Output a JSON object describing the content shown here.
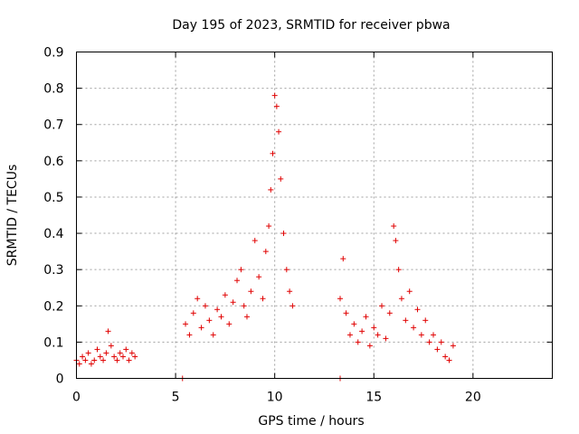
{
  "chart_data": {
    "type": "scatter",
    "title": "Day 195 of 2023, SRMTID for receiver pbwa",
    "xlabel": "GPS time / hours",
    "ylabel": "SRMTID / TECUs",
    "xlim": [
      0,
      24
    ],
    "ylim": [
      0,
      0.9
    ],
    "grid": true,
    "point_color": "#e00000",
    "xticks": [
      0,
      5,
      10,
      15,
      20
    ],
    "xtick_labels": [
      "0",
      "5",
      "10",
      "15",
      "20"
    ],
    "yticks": [
      0,
      0.1,
      0.2,
      0.3,
      0.4,
      0.5,
      0.6,
      0.7,
      0.8,
      0.9
    ],
    "ytick_labels": [
      "0",
      "0.1",
      "0.2",
      "0.3",
      "0.4",
      "0.5",
      "0.6",
      "0.7",
      "0.8",
      "0.9"
    ],
    "series": [
      {
        "name": "SRMTID",
        "x": [
          0.0,
          0.15,
          0.3,
          0.45,
          0.6,
          0.75,
          0.9,
          1.05,
          1.2,
          1.35,
          1.5,
          1.6,
          1.75,
          1.9,
          2.05,
          2.2,
          2.35,
          2.5,
          2.65,
          2.8,
          2.95,
          5.35,
          13.3,
          5.5,
          5.7,
          5.9,
          6.1,
          6.3,
          6.5,
          6.7,
          6.9,
          7.1,
          7.3,
          7.5,
          7.7,
          7.9,
          8.1,
          8.3,
          8.45,
          8.6,
          8.8,
          9.0,
          9.2,
          9.4,
          9.55,
          9.7,
          9.8,
          9.9,
          10.0,
          10.1,
          10.2,
          10.3,
          10.45,
          10.6,
          10.75,
          10.9,
          13.3,
          13.45,
          13.6,
          13.8,
          14.0,
          14.2,
          14.4,
          14.6,
          14.8,
          15.0,
          15.2,
          15.4,
          15.6,
          15.8,
          16.0,
          16.1,
          16.25,
          16.4,
          16.6,
          16.8,
          17.0,
          17.2,
          17.4,
          17.6,
          17.8,
          18.0,
          18.2,
          18.4,
          18.6,
          18.8,
          19.0
        ],
        "y": [
          0.05,
          0.04,
          0.06,
          0.05,
          0.07,
          0.04,
          0.05,
          0.08,
          0.06,
          0.05,
          0.07,
          0.13,
          0.09,
          0.06,
          0.05,
          0.07,
          0.06,
          0.08,
          0.05,
          0.07,
          0.06,
          0.0,
          0.0,
          0.15,
          0.12,
          0.18,
          0.22,
          0.14,
          0.2,
          0.16,
          0.12,
          0.19,
          0.17,
          0.23,
          0.15,
          0.21,
          0.27,
          0.3,
          0.2,
          0.17,
          0.24,
          0.38,
          0.28,
          0.22,
          0.35,
          0.42,
          0.52,
          0.62,
          0.78,
          0.75,
          0.68,
          0.55,
          0.4,
          0.3,
          0.24,
          0.2,
          0.22,
          0.33,
          0.18,
          0.12,
          0.15,
          0.1,
          0.13,
          0.17,
          0.09,
          0.14,
          0.12,
          0.2,
          0.11,
          0.18,
          0.42,
          0.38,
          0.3,
          0.22,
          0.16,
          0.24,
          0.14,
          0.19,
          0.12,
          0.16,
          0.1,
          0.12,
          0.08,
          0.1,
          0.06,
          0.05,
          0.09
        ]
      }
    ]
  }
}
